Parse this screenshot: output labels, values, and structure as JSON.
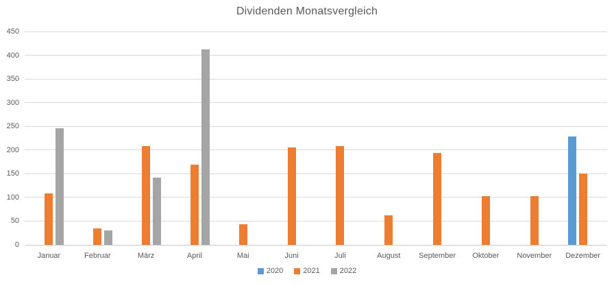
{
  "chart_data": {
    "type": "bar",
    "title": "Dividenden Monatsvergleich",
    "categories": [
      "Januar",
      "Februar",
      "März",
      "April",
      "Mai",
      "Juni",
      "Juli",
      "August",
      "September",
      "Oktober",
      "November",
      "Dezember"
    ],
    "series": [
      {
        "name": "2020",
        "color": "#5B9BD5",
        "values": [
          0,
          0,
          0,
          0,
          0,
          0,
          0,
          0,
          0,
          0,
          0,
          228
        ]
      },
      {
        "name": "2021",
        "color": "#ED7D31",
        "values": [
          109,
          35,
          208,
          170,
          44,
          205,
          208,
          62,
          194,
          103,
          103,
          150
        ]
      },
      {
        "name": "2022",
        "color": "#A5A5A5",
        "values": [
          246,
          31,
          142,
          413,
          0,
          0,
          0,
          0,
          0,
          0,
          0,
          0
        ]
      }
    ],
    "xlabel": "",
    "ylabel": "",
    "ylim": [
      0,
      450
    ],
    "ytick_step": 50,
    "grid": "horizontal",
    "legend_position": "bottom"
  },
  "style": {
    "background_color": "#FFFFFF",
    "grid_color": "#D9D9D9",
    "text_color": "#595959"
  }
}
